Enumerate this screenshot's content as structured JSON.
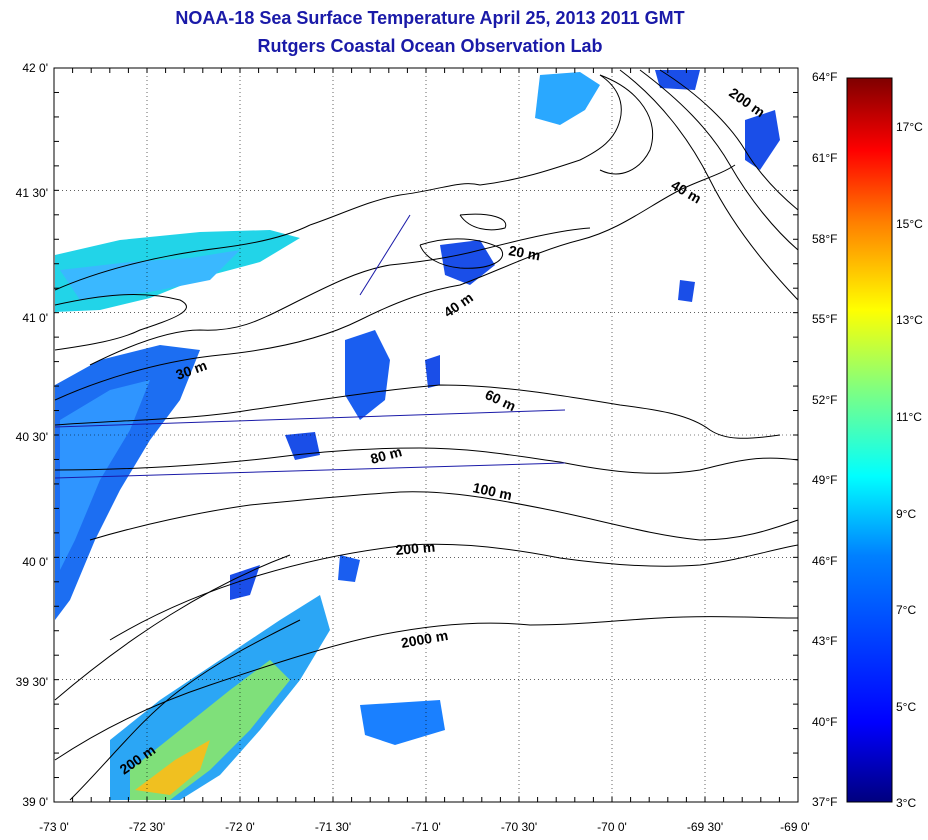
{
  "title": "NOAA-18 Sea Surface Temperature April 25, 2013 2011 GMT",
  "subtitle": "Rutgers Coastal Ocean Observation Lab",
  "map": {
    "lat_range": [
      39.0,
      42.0
    ],
    "lon_range": [
      -73.0,
      -69.0
    ],
    "lat_labels": [
      "42 0'",
      "41 30'",
      "41 0'",
      "40 30'",
      "40 0'",
      "39 30'",
      "39 0'"
    ],
    "lon_labels": [
      "-73 0'",
      "-72 30'",
      "-72 0'",
      "-71 30'",
      "-71 0'",
      "-70 30'",
      "-70 0'",
      "-69 30'",
      "-69 0'"
    ],
    "fahrenheit_labels": [
      "64°F",
      "61°F",
      "58°F",
      "55°F",
      "52°F",
      "49°F",
      "46°F",
      "43°F",
      "40°F",
      "37°F"
    ],
    "contour_labels": [
      "200 m",
      "40 m",
      "20 m",
      "40 m",
      "30 m",
      "60 m",
      "80 m",
      "100 m",
      "200 m",
      "2000 m",
      "200 m"
    ],
    "grid": true
  },
  "colorbar": {
    "celsius_labels": [
      "17°C",
      "15°C",
      "13°C",
      "11°C",
      "9°C",
      "7°C",
      "5°C",
      "3°C"
    ],
    "range_c": [
      3,
      18
    ],
    "colors": [
      "#00007f",
      "#0000ff",
      "#0080ff",
      "#00ffff",
      "#80ff80",
      "#ffff00",
      "#ff8000",
      "#ff0000",
      "#7f0000"
    ]
  }
}
